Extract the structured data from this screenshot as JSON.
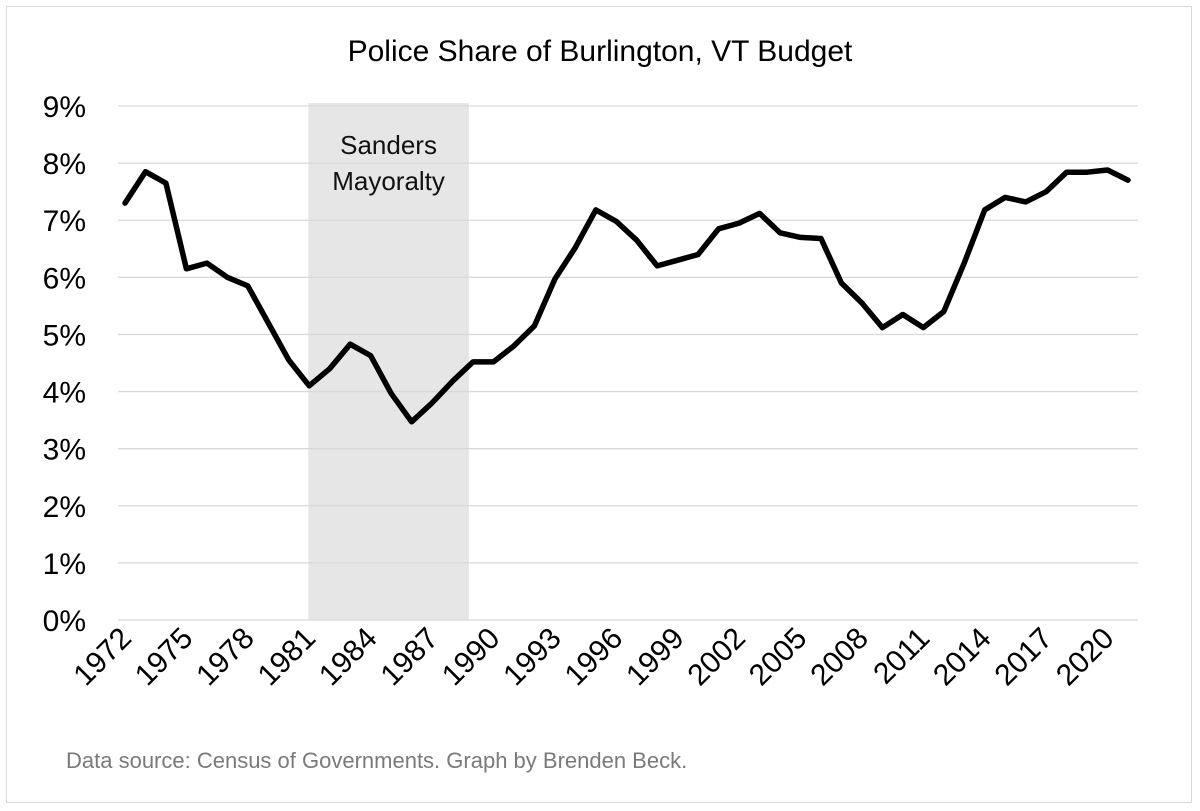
{
  "chart_data": {
    "type": "line",
    "title": "Police Share of Burlington, VT Budget",
    "xlabel": "",
    "ylabel": "",
    "ylim": [
      0,
      9
    ],
    "y_ticks": [
      "0%",
      "1%",
      "2%",
      "3%",
      "4%",
      "5%",
      "6%",
      "7%",
      "8%",
      "9%"
    ],
    "x_ticks": [
      "1972",
      "1975",
      "1978",
      "1981",
      "1984",
      "1987",
      "1990",
      "1993",
      "1996",
      "1999",
      "2002",
      "2005",
      "2008",
      "2011",
      "2014",
      "2017",
      "2020"
    ],
    "grid": true,
    "legend": "none",
    "annotation": {
      "label_line1": "Sanders",
      "label_line2": "Mayoralty",
      "start_year": 1981,
      "end_year": 1988.8
    },
    "series": [
      {
        "x": [
          1972,
          1973,
          1974,
          1975,
          1976,
          1977,
          1978,
          1979,
          1980,
          1981,
          1982,
          1983,
          1984,
          1985,
          1986,
          1987,
          1988,
          1989,
          1990,
          1991,
          1992,
          1993,
          1994,
          1995,
          1996,
          1997,
          1998,
          1999,
          2000,
          2001,
          2002,
          2003,
          2004,
          2005,
          2006,
          2007,
          2008,
          2009,
          2010,
          2011,
          2012,
          2013,
          2014,
          2015,
          2016,
          2017,
          2018,
          2019,
          2020,
          2021
        ],
        "values": [
          7.3,
          7.85,
          7.65,
          6.15,
          6.25,
          6.0,
          5.85,
          5.2,
          4.55,
          4.1,
          4.4,
          4.83,
          4.63,
          3.97,
          3.47,
          3.8,
          4.18,
          4.52,
          4.52,
          4.8,
          5.15,
          5.97,
          6.52,
          7.18,
          6.98,
          6.65,
          6.2,
          6.3,
          6.4,
          6.85,
          6.95,
          7.12,
          6.78,
          6.7,
          6.68,
          5.9,
          5.55,
          5.12,
          5.35,
          5.12,
          5.4,
          6.25,
          7.18,
          7.4,
          7.32,
          7.5,
          7.84,
          7.84,
          7.88,
          7.7
        ],
        "color": "#000000"
      }
    ]
  },
  "footer": {
    "source": "Data source: Census of Governments. Graph by Brenden Beck."
  }
}
